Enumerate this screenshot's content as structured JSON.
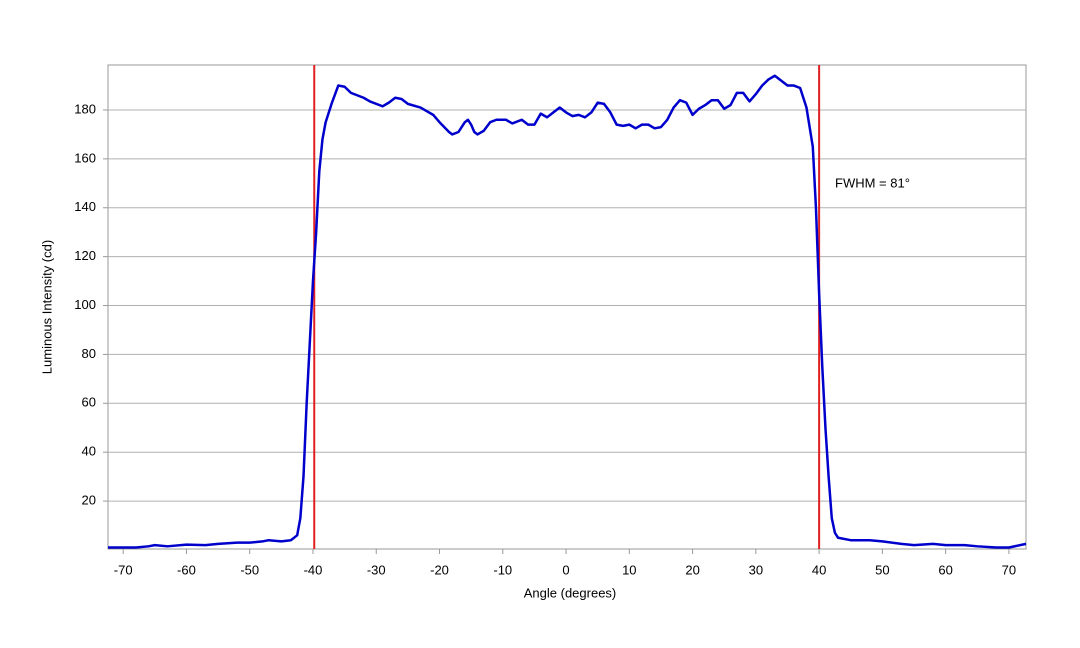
{
  "chart_data": {
    "type": "line",
    "x_label": "Angle (degrees)",
    "y_label": "Luminous Intensity (cd)",
    "annotation": "FWHM = 81°",
    "xlim": [
      -72.4,
      72.7
    ],
    "ylim": [
      0.4,
      198.4
    ],
    "xticks": [
      -70,
      -60,
      -50,
      -40,
      -30,
      -20,
      -10,
      0,
      10,
      20,
      30,
      40,
      50,
      60,
      70
    ],
    "yticks": [
      20,
      40,
      60,
      80,
      100,
      120,
      140,
      160,
      180
    ],
    "grid": true,
    "vlines": [
      -39.8,
      40
    ],
    "vline_color": "#e02020",
    "series": [
      {
        "color": "#0000cc",
        "x": [
          -72.4,
          -70,
          -68,
          -66,
          -65,
          -63,
          -60,
          -57,
          -55,
          -52,
          -50,
          -48,
          -47,
          -45,
          -43.5,
          -42.5,
          -42,
          -41.5,
          -41,
          -40.5,
          -40,
          -39.5,
          -39,
          -38.5,
          -38,
          -37,
          -36,
          -35,
          -34,
          -32,
          -31,
          -29,
          -28,
          -27,
          -26,
          -25,
          -23,
          -21,
          -20,
          -18.5,
          -18,
          -17,
          -16,
          -15.5,
          -15,
          -14.5,
          -14,
          -13,
          -12,
          -11,
          -9.5,
          -8.5,
          -7,
          -6,
          -5,
          -4,
          -3,
          -2,
          -1,
          0,
          1,
          2,
          3,
          4,
          5,
          6,
          7,
          8,
          9,
          10,
          11,
          12,
          13,
          14,
          15,
          16,
          17,
          18,
          19,
          20,
          21,
          22,
          23,
          24,
          25,
          26,
          27,
          28,
          29,
          30,
          31,
          32,
          33,
          34,
          35,
          36,
          37,
          38,
          39,
          39.5,
          40,
          40.5,
          41,
          41.5,
          42,
          42.5,
          43,
          45,
          48,
          50,
          53,
          55,
          58,
          60,
          63,
          65,
          68,
          70,
          72.7
        ],
        "values": [
          1,
          1,
          1,
          1.5,
          2,
          1.5,
          2.2,
          2,
          2.5,
          3,
          3,
          3.5,
          4,
          3.5,
          4,
          6,
          13,
          30,
          60,
          85,
          110,
          130,
          155,
          168,
          175,
          183,
          190,
          189.5,
          187,
          185,
          183.5,
          181.5,
          183,
          185,
          184.5,
          182.5,
          181,
          178,
          175,
          171,
          170,
          171,
          175,
          176,
          174,
          171,
          170,
          171.5,
          175,
          176,
          176,
          174.5,
          176,
          174,
          174,
          178.5,
          177,
          179,
          181,
          179,
          177.5,
          178,
          177,
          179,
          183,
          182.5,
          179,
          174,
          173.5,
          174,
          172.5,
          174,
          174,
          172.5,
          173,
          176,
          181,
          184,
          183,
          178,
          180.5,
          182,
          184,
          184,
          180.5,
          182,
          187,
          187,
          183.5,
          186.5,
          190,
          192.5,
          194,
          192,
          190,
          190,
          189,
          181,
          165,
          140,
          105,
          75,
          50,
          30,
          13,
          7,
          5,
          4,
          4,
          3.5,
          2.5,
          2,
          2.5,
          2,
          2,
          1.5,
          1,
          1,
          2.5
        ]
      }
    ]
  }
}
